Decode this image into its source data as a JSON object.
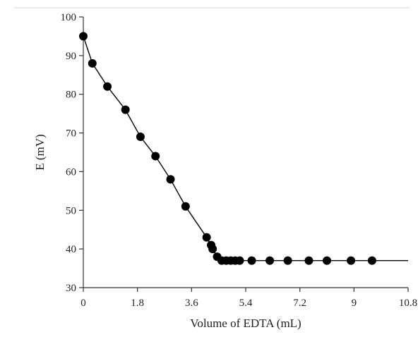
{
  "chart_data": {
    "type": "line",
    "title": "",
    "xlabel": "Volume of EDTA (mL)",
    "ylabel": "E (mV)",
    "xlim": [
      0,
      10.8
    ],
    "ylim": [
      30,
      100
    ],
    "x_ticks": [
      "0",
      "1.8",
      "3.6",
      "5.4",
      "7.2",
      "9",
      "10.8"
    ],
    "y_ticks": [
      "30",
      "40",
      "50",
      "60",
      "70",
      "80",
      "90",
      "100"
    ],
    "grid": false,
    "legend": false,
    "markers": true,
    "colors": {
      "series": "#000000"
    },
    "series": [
      {
        "name": "",
        "x": [
          0,
          0.3,
          0.8,
          1.4,
          1.9,
          2.4,
          2.9,
          3.4,
          4.1,
          4.25,
          4.3,
          4.45,
          4.6,
          4.75,
          4.9,
          5.05,
          5.2,
          5.6,
          6.2,
          6.8,
          7.5,
          8.1,
          8.9,
          9.6
        ],
        "y": [
          95,
          88,
          82,
          76,
          69,
          64,
          58,
          51,
          43,
          41,
          40,
          38,
          37,
          37,
          37,
          37,
          37,
          37,
          37,
          37,
          37,
          37,
          37,
          37
        ]
      }
    ]
  }
}
